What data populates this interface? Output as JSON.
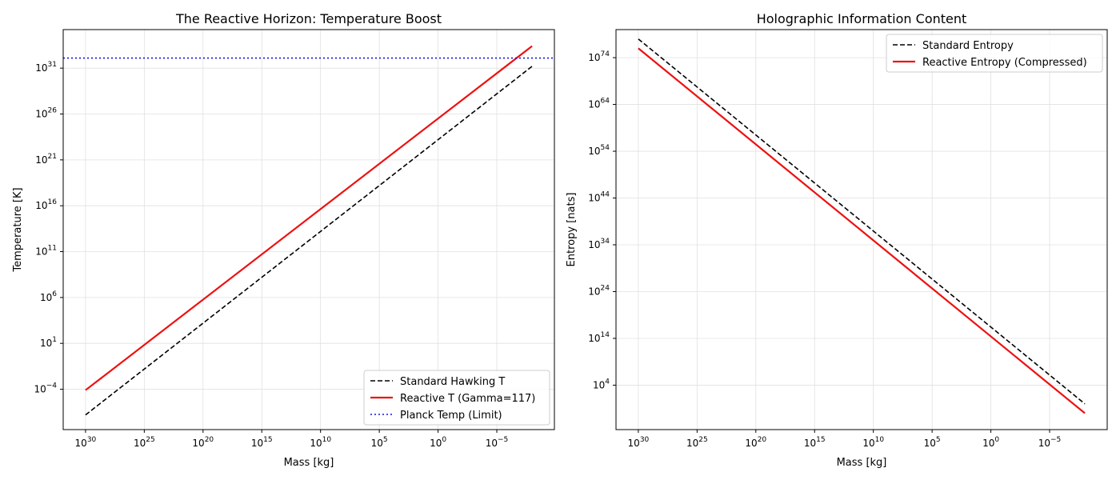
{
  "chart_data": [
    {
      "type": "line",
      "title": "The Reactive Horizon: Temperature Boost",
      "xlabel": "Mass [kg]",
      "ylabel": "Temperature [K]",
      "xscale": "log",
      "yscale": "log",
      "x_reversed": true,
      "xlim_log10": [
        31.9,
        -9.9
      ],
      "ylim_log10": [
        -8.4,
        35.2
      ],
      "x_ticks": [
        {
          "exp": 30,
          "label": "30"
        },
        {
          "exp": 25,
          "label": "25"
        },
        {
          "exp": 20,
          "label": "20"
        },
        {
          "exp": 15,
          "label": "15"
        },
        {
          "exp": 10,
          "label": "10"
        },
        {
          "exp": 5,
          "label": "5"
        },
        {
          "exp": 0,
          "label": "0"
        },
        {
          "exp": -5,
          "label": "−5"
        }
      ],
      "y_ticks": [
        {
          "exp": -4,
          "label": "−4"
        },
        {
          "exp": 1,
          "label": "1"
        },
        {
          "exp": 6,
          "label": "6"
        },
        {
          "exp": 11,
          "label": "11"
        },
        {
          "exp": 16,
          "label": "16"
        },
        {
          "exp": 21,
          "label": "21"
        },
        {
          "exp": 26,
          "label": "26"
        },
        {
          "exp": 31,
          "label": "31"
        }
      ],
      "grid": true,
      "legend_position": "lower-right",
      "series": [
        {
          "name": "Standard Hawking T",
          "style": "dashed",
          "color": "#000000",
          "x_log10": [
            30,
            -8
          ],
          "y_log10": [
            -6.8,
            31.2
          ]
        },
        {
          "name": "Reactive T (Gamma=117)",
          "style": "solid",
          "color": "#ee1111",
          "x_log10": [
            30,
            -8
          ],
          "y_log10": [
            -4.1,
            33.4
          ]
        },
        {
          "name": "Planck Temp (Limit)",
          "style": "dotted",
          "color": "#1111ee",
          "x_log10": [
            31.9,
            -9.9
          ],
          "y_log10": [
            32.1,
            32.1
          ]
        }
      ]
    },
    {
      "type": "line",
      "title": "Holographic Information Content",
      "xlabel": "Mass [kg]",
      "ylabel": "Entropy [nats]",
      "xscale": "log",
      "yscale": "log",
      "x_reversed": true,
      "xlim_log10": [
        31.9,
        -9.9
      ],
      "ylim_log10": [
        -5.5,
        80.0
      ],
      "x_ticks": [
        {
          "exp": 30,
          "label": "30"
        },
        {
          "exp": 25,
          "label": "25"
        },
        {
          "exp": 20,
          "label": "20"
        },
        {
          "exp": 15,
          "label": "15"
        },
        {
          "exp": 10,
          "label": "10"
        },
        {
          "exp": 5,
          "label": "5"
        },
        {
          "exp": 0,
          "label": "0"
        },
        {
          "exp": -5,
          "label": "−5"
        }
      ],
      "y_ticks": [
        {
          "exp": 4,
          "label": "4"
        },
        {
          "exp": 14,
          "label": "14"
        },
        {
          "exp": 24,
          "label": "24"
        },
        {
          "exp": 34,
          "label": "34"
        },
        {
          "exp": 44,
          "label": "44"
        },
        {
          "exp": 54,
          "label": "54"
        },
        {
          "exp": 64,
          "label": "64"
        },
        {
          "exp": 74,
          "label": "74"
        }
      ],
      "grid": true,
      "legend_position": "upper-right",
      "series": [
        {
          "name": "Standard Entropy",
          "style": "dashed",
          "color": "#000000",
          "x_log10": [
            30,
            -8
          ],
          "y_log10": [
            78.0,
            0.0
          ]
        },
        {
          "name": "Reactive Entropy (Compressed)",
          "style": "solid",
          "color": "#ee1111",
          "x_log10": [
            30,
            -8
          ],
          "y_log10": [
            76.0,
            -2.0
          ]
        }
      ]
    }
  ]
}
